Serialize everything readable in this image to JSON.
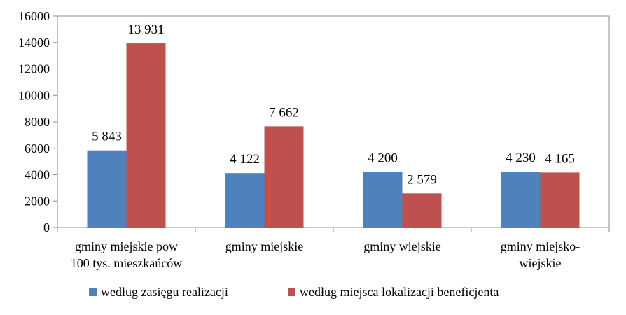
{
  "chart_data": {
    "type": "bar",
    "title": "",
    "xlabel": "",
    "ylabel": "",
    "ylim": [
      0,
      16000
    ],
    "yticks": [
      0,
      2000,
      4000,
      6000,
      8000,
      10000,
      12000,
      14000,
      16000
    ],
    "grid": false,
    "legend_position": "bottom",
    "categories": [
      [
        "gminy miejskie pow",
        "100 tys. mieszkańców"
      ],
      [
        "gminy miejskie"
      ],
      [
        "gminy wiejskie"
      ],
      [
        "gminy miejsko-",
        "wiejskie"
      ]
    ],
    "series": [
      {
        "name": "według zasięgu realizacji",
        "color": "#4F81BD",
        "values": [
          5843,
          4122,
          4200,
          4230
        ],
        "labels": [
          "5 843",
          "4 122",
          "4 200",
          "4 230"
        ]
      },
      {
        "name": "według miejsca lokalizacji beneficjenta",
        "color": "#C0504D",
        "values": [
          13931,
          7662,
          2579,
          4165
        ],
        "labels": [
          "13 931",
          "7 662",
          "2 579",
          "4 165"
        ]
      }
    ]
  }
}
